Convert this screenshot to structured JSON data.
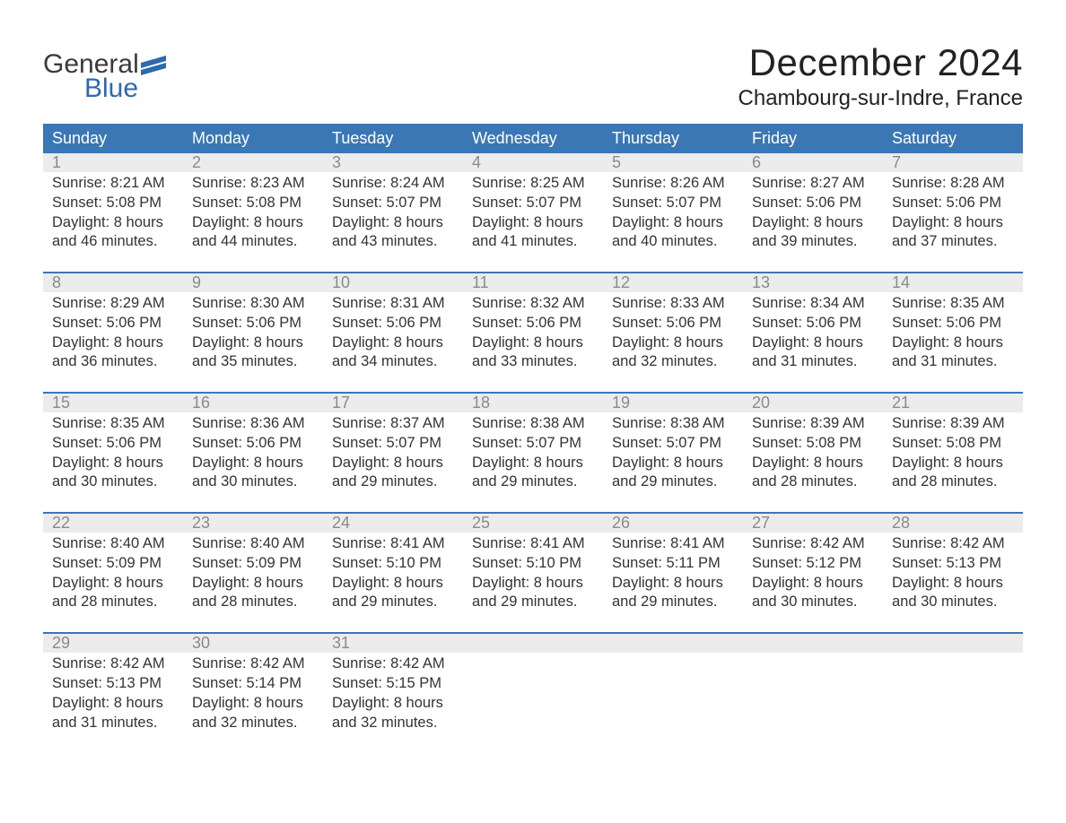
{
  "colors": {
    "header_bg": "#3b77b5",
    "header_text": "#ffffff",
    "daynum_bg": "#ececec",
    "daynum_text": "#8a8a8a",
    "body_text": "#333333",
    "logo_blue": "#2f6aac",
    "logo_dark": "#3a3a3a",
    "page_bg": "#ffffff",
    "row_divider": "#3b77b5"
  },
  "typography": {
    "title_fontsize": 42,
    "location_fontsize": 24,
    "header_fontsize": 18,
    "daynum_fontsize": 18,
    "cell_fontsize": 16.5,
    "logo_fontsize": 30
  },
  "logo": {
    "line1": "General",
    "line2": "Blue"
  },
  "title": "December 2024",
  "location": "Chambourg-sur-Indre, France",
  "weekdays": [
    "Sunday",
    "Monday",
    "Tuesday",
    "Wednesday",
    "Thursday",
    "Friday",
    "Saturday"
  ],
  "weeks": [
    [
      {
        "day": "1",
        "sunrise": "Sunrise: 8:21 AM",
        "sunset": "Sunset: 5:08 PM",
        "d1": "Daylight: 8 hours",
        "d2": "and 46 minutes."
      },
      {
        "day": "2",
        "sunrise": "Sunrise: 8:23 AM",
        "sunset": "Sunset: 5:08 PM",
        "d1": "Daylight: 8 hours",
        "d2": "and 44 minutes."
      },
      {
        "day": "3",
        "sunrise": "Sunrise: 8:24 AM",
        "sunset": "Sunset: 5:07 PM",
        "d1": "Daylight: 8 hours",
        "d2": "and 43 minutes."
      },
      {
        "day": "4",
        "sunrise": "Sunrise: 8:25 AM",
        "sunset": "Sunset: 5:07 PM",
        "d1": "Daylight: 8 hours",
        "d2": "and 41 minutes."
      },
      {
        "day": "5",
        "sunrise": "Sunrise: 8:26 AM",
        "sunset": "Sunset: 5:07 PM",
        "d1": "Daylight: 8 hours",
        "d2": "and 40 minutes."
      },
      {
        "day": "6",
        "sunrise": "Sunrise: 8:27 AM",
        "sunset": "Sunset: 5:06 PM",
        "d1": "Daylight: 8 hours",
        "d2": "and 39 minutes."
      },
      {
        "day": "7",
        "sunrise": "Sunrise: 8:28 AM",
        "sunset": "Sunset: 5:06 PM",
        "d1": "Daylight: 8 hours",
        "d2": "and 37 minutes."
      }
    ],
    [
      {
        "day": "8",
        "sunrise": "Sunrise: 8:29 AM",
        "sunset": "Sunset: 5:06 PM",
        "d1": "Daylight: 8 hours",
        "d2": "and 36 minutes."
      },
      {
        "day": "9",
        "sunrise": "Sunrise: 8:30 AM",
        "sunset": "Sunset: 5:06 PM",
        "d1": "Daylight: 8 hours",
        "d2": "and 35 minutes."
      },
      {
        "day": "10",
        "sunrise": "Sunrise: 8:31 AM",
        "sunset": "Sunset: 5:06 PM",
        "d1": "Daylight: 8 hours",
        "d2": "and 34 minutes."
      },
      {
        "day": "11",
        "sunrise": "Sunrise: 8:32 AM",
        "sunset": "Sunset: 5:06 PM",
        "d1": "Daylight: 8 hours",
        "d2": "and 33 minutes."
      },
      {
        "day": "12",
        "sunrise": "Sunrise: 8:33 AM",
        "sunset": "Sunset: 5:06 PM",
        "d1": "Daylight: 8 hours",
        "d2": "and 32 minutes."
      },
      {
        "day": "13",
        "sunrise": "Sunrise: 8:34 AM",
        "sunset": "Sunset: 5:06 PM",
        "d1": "Daylight: 8 hours",
        "d2": "and 31 minutes."
      },
      {
        "day": "14",
        "sunrise": "Sunrise: 8:35 AM",
        "sunset": "Sunset: 5:06 PM",
        "d1": "Daylight: 8 hours",
        "d2": "and 31 minutes."
      }
    ],
    [
      {
        "day": "15",
        "sunrise": "Sunrise: 8:35 AM",
        "sunset": "Sunset: 5:06 PM",
        "d1": "Daylight: 8 hours",
        "d2": "and 30 minutes."
      },
      {
        "day": "16",
        "sunrise": "Sunrise: 8:36 AM",
        "sunset": "Sunset: 5:06 PM",
        "d1": "Daylight: 8 hours",
        "d2": "and 30 minutes."
      },
      {
        "day": "17",
        "sunrise": "Sunrise: 8:37 AM",
        "sunset": "Sunset: 5:07 PM",
        "d1": "Daylight: 8 hours",
        "d2": "and 29 minutes."
      },
      {
        "day": "18",
        "sunrise": "Sunrise: 8:38 AM",
        "sunset": "Sunset: 5:07 PM",
        "d1": "Daylight: 8 hours",
        "d2": "and 29 minutes."
      },
      {
        "day": "19",
        "sunrise": "Sunrise: 8:38 AM",
        "sunset": "Sunset: 5:07 PM",
        "d1": "Daylight: 8 hours",
        "d2": "and 29 minutes."
      },
      {
        "day": "20",
        "sunrise": "Sunrise: 8:39 AM",
        "sunset": "Sunset: 5:08 PM",
        "d1": "Daylight: 8 hours",
        "d2": "and 28 minutes."
      },
      {
        "day": "21",
        "sunrise": "Sunrise: 8:39 AM",
        "sunset": "Sunset: 5:08 PM",
        "d1": "Daylight: 8 hours",
        "d2": "and 28 minutes."
      }
    ],
    [
      {
        "day": "22",
        "sunrise": "Sunrise: 8:40 AM",
        "sunset": "Sunset: 5:09 PM",
        "d1": "Daylight: 8 hours",
        "d2": "and 28 minutes."
      },
      {
        "day": "23",
        "sunrise": "Sunrise: 8:40 AM",
        "sunset": "Sunset: 5:09 PM",
        "d1": "Daylight: 8 hours",
        "d2": "and 28 minutes."
      },
      {
        "day": "24",
        "sunrise": "Sunrise: 8:41 AM",
        "sunset": "Sunset: 5:10 PM",
        "d1": "Daylight: 8 hours",
        "d2": "and 29 minutes."
      },
      {
        "day": "25",
        "sunrise": "Sunrise: 8:41 AM",
        "sunset": "Sunset: 5:10 PM",
        "d1": "Daylight: 8 hours",
        "d2": "and 29 minutes."
      },
      {
        "day": "26",
        "sunrise": "Sunrise: 8:41 AM",
        "sunset": "Sunset: 5:11 PM",
        "d1": "Daylight: 8 hours",
        "d2": "and 29 minutes."
      },
      {
        "day": "27",
        "sunrise": "Sunrise: 8:42 AM",
        "sunset": "Sunset: 5:12 PM",
        "d1": "Daylight: 8 hours",
        "d2": "and 30 minutes."
      },
      {
        "day": "28",
        "sunrise": "Sunrise: 8:42 AM",
        "sunset": "Sunset: 5:13 PM",
        "d1": "Daylight: 8 hours",
        "d2": "and 30 minutes."
      }
    ],
    [
      {
        "day": "29",
        "sunrise": "Sunrise: 8:42 AM",
        "sunset": "Sunset: 5:13 PM",
        "d1": "Daylight: 8 hours",
        "d2": "and 31 minutes."
      },
      {
        "day": "30",
        "sunrise": "Sunrise: 8:42 AM",
        "sunset": "Sunset: 5:14 PM",
        "d1": "Daylight: 8 hours",
        "d2": "and 32 minutes."
      },
      {
        "day": "31",
        "sunrise": "Sunrise: 8:42 AM",
        "sunset": "Sunset: 5:15 PM",
        "d1": "Daylight: 8 hours",
        "d2": "and 32 minutes."
      },
      null,
      null,
      null,
      null
    ]
  ]
}
